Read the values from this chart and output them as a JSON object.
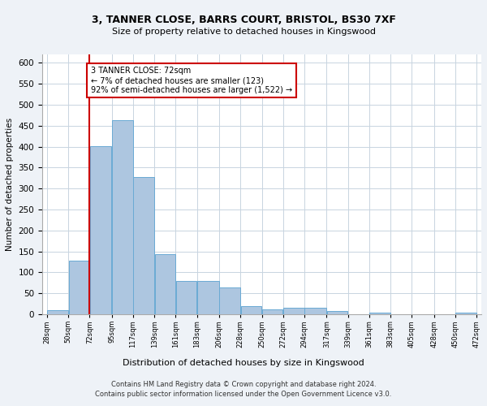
{
  "title_line1": "3, TANNER CLOSE, BARRS COURT, BRISTOL, BS30 7XF",
  "title_line2": "Size of property relative to detached houses in Kingswood",
  "xlabel": "Distribution of detached houses by size in Kingswood",
  "ylabel": "Number of detached properties",
  "bar_color": "#adc6e0",
  "bar_edge_color": "#6aaad4",
  "highlight_line_color": "#cc0000",
  "annotation_box_color": "#cc0000",
  "annotation_text": "3 TANNER CLOSE: 72sqm\n← 7% of detached houses are smaller (123)\n92% of semi-detached houses are larger (1,522) →",
  "property_size": 72,
  "bin_edges": [
    28,
    50,
    72,
    95,
    117,
    139,
    161,
    183,
    206,
    228,
    250,
    272,
    294,
    317,
    339,
    361,
    383,
    405,
    428,
    450,
    472
  ],
  "bar_values": [
    10,
    128,
    401,
    463,
    328,
    144,
    79,
    79,
    65,
    20,
    12,
    15,
    15,
    7,
    0,
    5,
    0,
    0,
    0,
    5
  ],
  "ylim": [
    0,
    620
  ],
  "yticks": [
    0,
    50,
    100,
    150,
    200,
    250,
    300,
    350,
    400,
    450,
    500,
    550,
    600
  ],
  "footer_line1": "Contains HM Land Registry data © Crown copyright and database right 2024.",
  "footer_line2": "Contains public sector information licensed under the Open Government Licence v3.0.",
  "bg_color": "#eef2f7",
  "plot_bg_color": "#ffffff",
  "grid_color": "#c8d4e0"
}
